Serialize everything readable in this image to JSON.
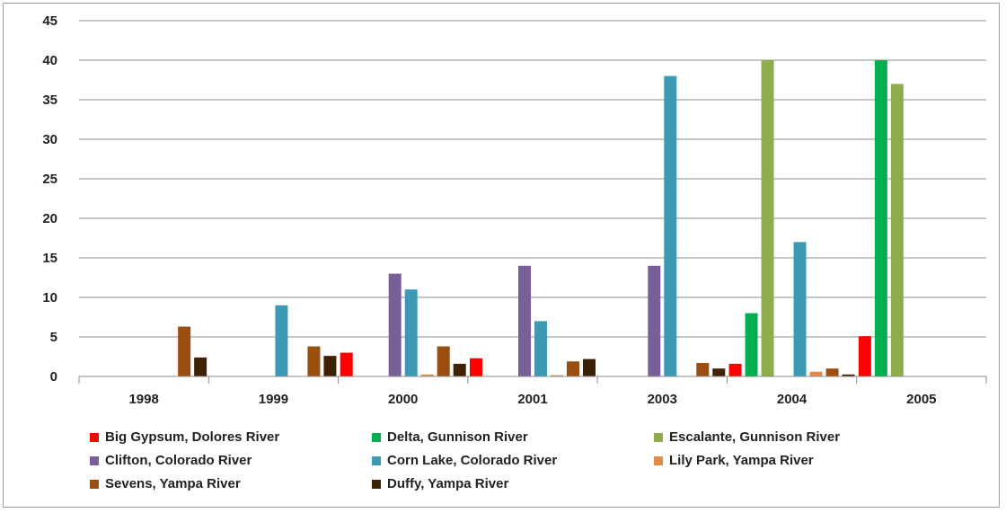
{
  "chart_data": {
    "type": "bar",
    "categories": [
      "1998",
      "1999",
      "2000",
      "2001",
      "2003",
      "2004",
      "2005"
    ],
    "ylim": [
      0,
      45
    ],
    "yticks": [
      0,
      5,
      10,
      15,
      20,
      25,
      30,
      35,
      40,
      45
    ],
    "grid": true,
    "legend_position": "bottom",
    "series": [
      {
        "name": "Big Gypsum, Dolores River",
        "color": "#ff0000",
        "values": [
          0,
          0,
          3,
          2.3,
          0,
          1.6,
          5.1
        ]
      },
      {
        "name": "Delta, Gunnison River",
        "color": "#00b050",
        "values": [
          0,
          0,
          0,
          0,
          0,
          8,
          40
        ]
      },
      {
        "name": "Escalante, Gunnison River",
        "color": "#8fac4c",
        "values": [
          0,
          0,
          0,
          0,
          0,
          40,
          37
        ]
      },
      {
        "name": "Clifton, Colorado River",
        "color": "#7a5e98",
        "values": [
          0,
          0,
          13,
          14,
          14,
          0,
          0
        ]
      },
      {
        "name": "Corn Lake, Colorado River",
        "color": "#3c9ab7",
        "values": [
          0,
          9,
          11,
          7,
          38,
          17,
          0
        ]
      },
      {
        "name": "Lily Park, Yampa River",
        "color": "#e08b47",
        "values": [
          0,
          0,
          0.25,
          0.15,
          0,
          0.6,
          0
        ]
      },
      {
        "name": "Sevens, Yampa River",
        "color": "#9a4e10",
        "values": [
          6.3,
          3.8,
          3.8,
          1.9,
          1.7,
          1.0,
          0
        ]
      },
      {
        "name": "Duffy, Yampa River",
        "color": "#3d2204",
        "values": [
          2.4,
          2.6,
          1.6,
          2.2,
          1.0,
          0.25,
          0
        ]
      }
    ]
  }
}
